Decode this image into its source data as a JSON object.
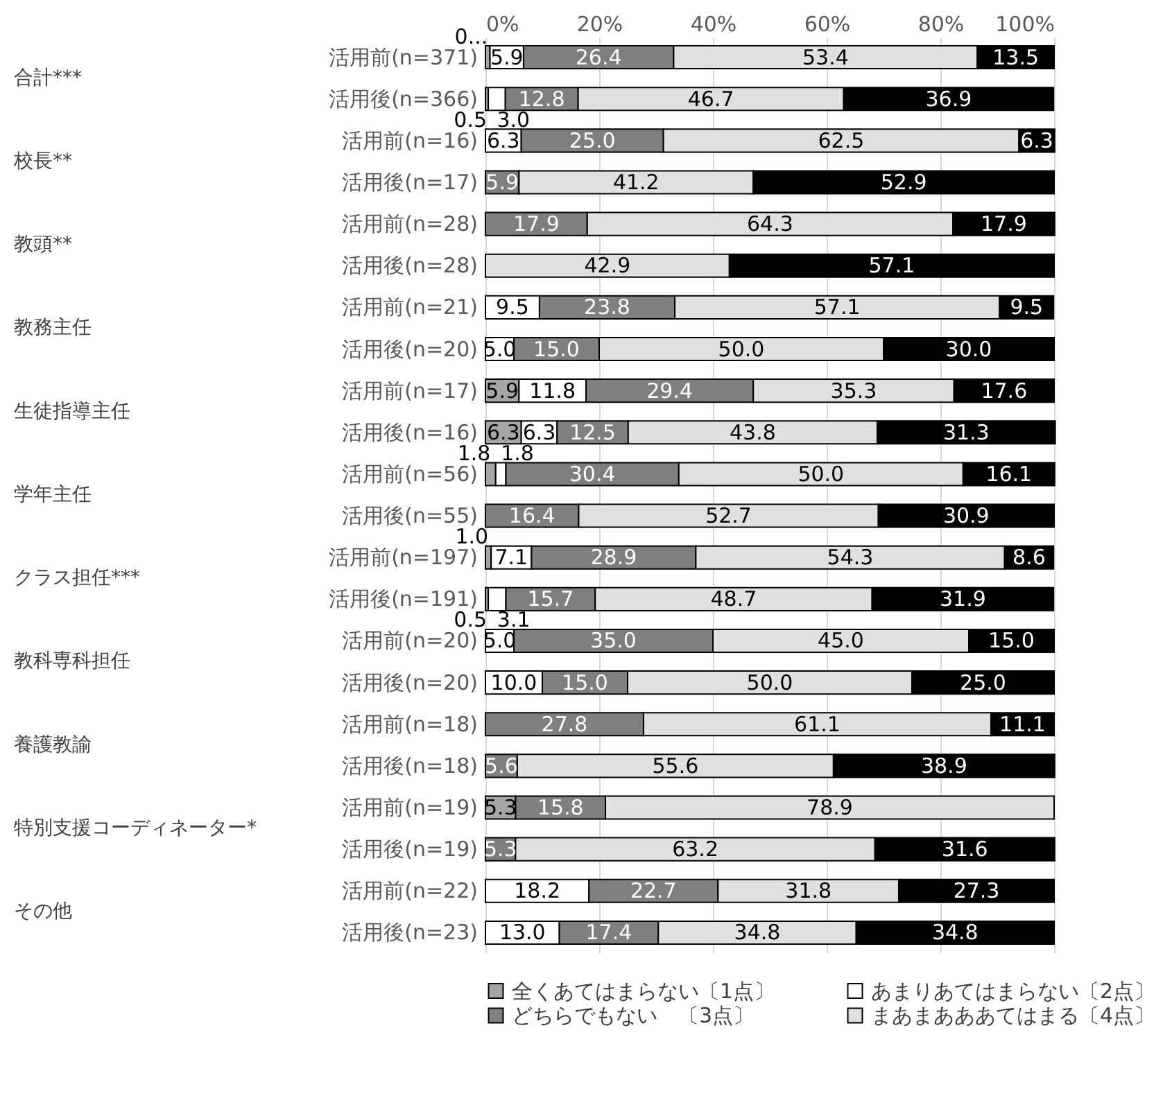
{
  "chart_data": {
    "type": "bar",
    "orientation": "horizontal",
    "stacked": true,
    "categories": [
      "活用前(n=371)",
      "活用後(n=366)",
      "活用前(n=16)",
      "活用後(n=17)",
      "活用前(n=28)",
      "活用後(n=28)",
      "活用前(n=21)",
      "活用後(n=20)",
      "活用前(n=17)",
      "活用後(n=16)",
      "活用前(n=56)",
      "活用後(n=55)",
      "活用前(n=197)",
      "活用後(n=191)",
      "活用前(n=20)",
      "活用後(n=20)",
      "活用前(n=18)",
      "活用後(n=18)",
      "活用前(n=19)",
      "活用後(n=19)",
      "活用前(n=22)",
      "活用後(n=23)"
    ],
    "annotations": [
      "合計***",
      "校長**",
      "教頭**",
      "教務主任",
      "生徒指導主任",
      "学年主任",
      "クラス担任***",
      "教科専科担任",
      "養護教諭",
      "特別支援コーディネーター*",
      "その他"
    ],
    "series": [
      {
        "name": "全くあてはまらない〔1点〕",
        "color": "#a6a6a6",
        "values": [
          0.8,
          0.5,
          0,
          0,
          0,
          0,
          0,
          0,
          5.9,
          6.3,
          1.8,
          0,
          1.0,
          0.5,
          0,
          0,
          0,
          0,
          5.3,
          0,
          0,
          0
        ],
        "value_labels": [
          "0...",
          "0.5",
          null,
          null,
          null,
          null,
          null,
          null,
          "5.9",
          "6.3",
          "1.8",
          null,
          "1.0",
          "0.5",
          null,
          null,
          null,
          null,
          "5.3",
          null,
          null,
          null
        ]
      },
      {
        "name": "あまりあてはまらない〔2点〕",
        "color": "#ffffff",
        "values": [
          5.9,
          3.0,
          6.3,
          0,
          0,
          0,
          9.5,
          5.0,
          11.8,
          6.3,
          1.8,
          0,
          7.1,
          3.1,
          5.0,
          10.0,
          0,
          0,
          0,
          0,
          18.2,
          13.0
        ],
        "value_labels": [
          "5.9",
          "3.0",
          "6.3",
          null,
          null,
          null,
          "9.5",
          "5.0",
          "11.8",
          "6.3",
          "1.8",
          null,
          "7.1",
          "3.1",
          "5.0",
          "10.0",
          null,
          null,
          null,
          null,
          "18.2",
          "13.0"
        ]
      },
      {
        "name": "どちらでもない　〔3点〕",
        "color": "#7f7f7f",
        "values": [
          26.4,
          12.8,
          25.0,
          5.9,
          17.9,
          0,
          23.8,
          15.0,
          29.4,
          12.5,
          30.4,
          16.4,
          28.9,
          15.7,
          35.0,
          15.0,
          27.8,
          5.6,
          15.8,
          5.3,
          22.7,
          17.4
        ],
        "value_labels": [
          "26.4",
          "12.8",
          "25.0",
          "5.9",
          "17.9",
          null,
          "23.8",
          "15.0",
          "29.4",
          "12.5",
          "30.4",
          "16.4",
          "28.9",
          "15.7",
          "35.0",
          "15.0",
          "27.8",
          "5.6",
          "15.8",
          "5.3",
          "22.7",
          "17.4"
        ]
      },
      {
        "name": "まあまあああてはまる〔4点〕",
        "color": "#e0e0e0",
        "values": [
          53.4,
          46.7,
          62.5,
          41.2,
          64.3,
          42.9,
          57.1,
          50.0,
          35.3,
          43.8,
          50.0,
          52.7,
          54.3,
          48.7,
          45.0,
          50.0,
          61.1,
          55.6,
          78.9,
          63.2,
          31.8,
          34.8
        ],
        "value_labels": [
          "53.4",
          "46.7",
          "62.5",
          "41.2",
          "64.3",
          "42.9",
          "57.1",
          "50.0",
          "35.3",
          "43.8",
          "50.0",
          "52.7",
          "54.3",
          "48.7",
          "45.0",
          "50.0",
          "61.1",
          "55.6",
          "78.9",
          "63.2",
          "31.8",
          "34.8"
        ]
      },
      {
        "color": "#000000",
        "values": [
          13.5,
          36.9,
          6.3,
          52.9,
          17.9,
          57.1,
          9.5,
          30.0,
          17.6,
          31.3,
          16.1,
          30.9,
          8.6,
          31.9,
          15.0,
          25.0,
          11.1,
          38.9,
          0,
          31.6,
          27.3,
          34.8
        ],
        "value_labels": [
          "13.5",
          "36.9",
          "6.3",
          "52.9",
          "17.9",
          "57.1",
          "9.5",
          "30.0",
          "17.6",
          "31.3",
          "16.1",
          "30.9",
          "8.6",
          "31.9",
          "15.0",
          "25.0",
          "11.1",
          "38.9",
          null,
          "31.6",
          "27.3",
          "34.8"
        ]
      }
    ],
    "xlim": [
      0,
      100
    ],
    "xticks": [
      {
        "value": 0,
        "label": "0%"
      },
      {
        "value": 20,
        "label": "20%"
      },
      {
        "value": 40,
        "label": "40%"
      },
      {
        "value": 60,
        "label": "60%"
      },
      {
        "value": 80,
        "label": "80%"
      },
      {
        "value": 100,
        "label": "100%"
      }
    ],
    "grid": "x",
    "legend": "bottom"
  }
}
